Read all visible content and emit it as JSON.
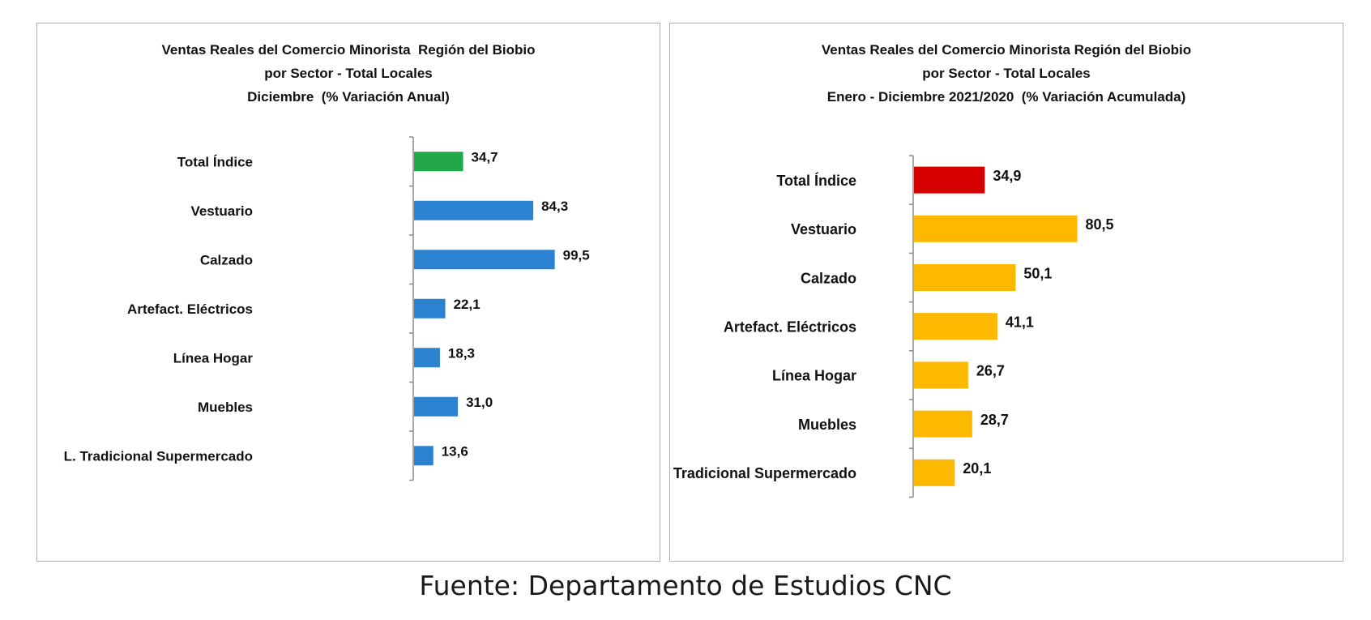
{
  "colors": {
    "left_total": "#22a84a",
    "left_bars": "#2a82d0",
    "right_total": "#d60000",
    "right_bars": "#fcb900"
  },
  "chart_data": [
    {
      "type": "bar",
      "orientation": "horizontal",
      "title_lines": [
        "Ventas Reales del Comercio Minorista  Región del Biobio",
        "por Sector - Total Locales",
        "Diciembre  (% Variación Anual)"
      ],
      "categories": [
        "Total Índice",
        "Vestuario",
        "Calzado",
        "Artefact. Eléctricos",
        "Línea Hogar",
        "Muebles",
        "L. Tradicional Supermercado"
      ],
      "values": [
        34.7,
        84.3,
        99.5,
        22.1,
        18.3,
        31.0,
        13.6
      ],
      "value_labels": [
        "34,7",
        "84,3",
        "99,5",
        "22,1",
        "18,3",
        "31,0",
        "13,6"
      ],
      "highlight_color": "#22a84a",
      "bar_color": "#2a82d0",
      "xlim": [
        0,
        100
      ]
    },
    {
      "type": "bar",
      "orientation": "horizontal",
      "title_lines": [
        "Ventas Reales del Comercio Minorista Región del Biobio",
        "por Sector - Total Locales",
        "Enero - Diciembre 2021/2020  (% Variación Acumulada)"
      ],
      "categories": [
        "Total Índice",
        "Vestuario",
        "Calzado",
        "Artefact. Eléctricos",
        "Línea Hogar",
        "Muebles",
        "L. Tradicional Supermercado"
      ],
      "values": [
        34.9,
        80.5,
        50.1,
        41.1,
        26.7,
        28.7,
        20.1
      ],
      "value_labels": [
        "34,9",
        "80,5",
        "50,1",
        "41,1",
        "26,7",
        "28,7",
        "20,1"
      ],
      "highlight_color": "#d60000",
      "bar_color": "#fcb900",
      "xlim": [
        0,
        80.5
      ]
    }
  ],
  "source_text": "Fuente: Departamento de Estudios CNC"
}
